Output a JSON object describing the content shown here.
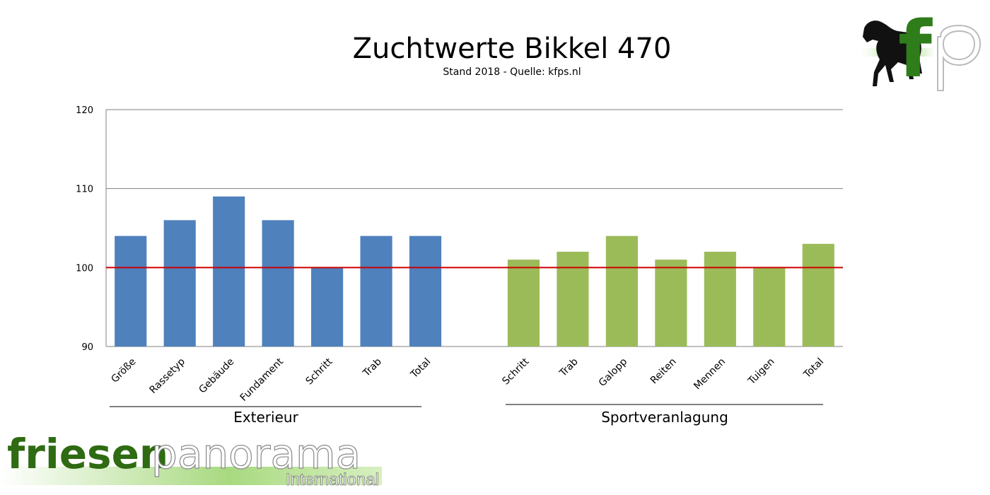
{
  "title": "Zuchtwerte Bikkel 470",
  "subtitle": "Stand 2018 - Quelle: kfps.nl",
  "logo": {
    "text": "fp",
    "icon": "horse-silhouette-icon"
  },
  "brand": {
    "word1": "friesen",
    "word2": "panorama",
    "tagline": "International"
  },
  "colors": {
    "exterieur": "#4f81bd",
    "sport": "#9bbb59",
    "reference_line": "#cc0000",
    "grid": "#808080",
    "brand_green": "#2e6b12"
  },
  "chart_data": {
    "type": "bar",
    "ylim": [
      90,
      120
    ],
    "yticks": [
      90,
      100,
      110,
      120
    ],
    "reference_line": 100,
    "grid": true,
    "groups": [
      {
        "name": "Exterieur",
        "color": "#4f81bd",
        "categories": [
          "Größe",
          "Rassetyp",
          "Gebäude",
          "Fundament",
          "Schritt",
          "Trab",
          "Total"
        ],
        "values": [
          104,
          106,
          109,
          106,
          100,
          104,
          104
        ]
      },
      {
        "name": "Sportveranlagung",
        "color": "#9bbb59",
        "categories": [
          "Schritt",
          "Trab",
          "Galopp",
          "Reiten",
          "Mennen",
          "Tuigen",
          "Total"
        ],
        "values": [
          101,
          102,
          104,
          101,
          102,
          100,
          103
        ]
      }
    ]
  }
}
